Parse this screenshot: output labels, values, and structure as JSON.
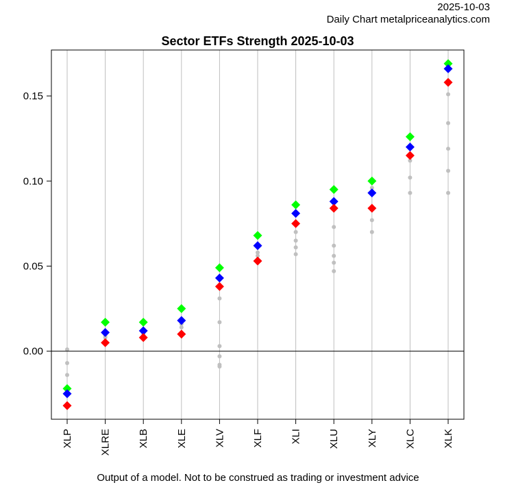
{
  "header": {
    "date": "2025-10-03",
    "source": "Daily Chart metalpriceanalytics.com"
  },
  "footer": {
    "disclaimer": "Output of a model. Not to be construed as trading or investment advice"
  },
  "chart_data": {
    "type": "scatter",
    "title": "Sector ETFs Strength 2025-10-03",
    "xlabel": "",
    "ylabel": "",
    "categories": [
      "XLP",
      "XLRE",
      "XLB",
      "XLE",
      "XLV",
      "XLF",
      "XLI",
      "XLU",
      "XLY",
      "XLC",
      "XLK"
    ],
    "ylim": [
      -0.04,
      0.177
    ],
    "yticks": [
      0.0,
      0.05,
      0.1,
      0.15
    ],
    "ytick_labels": [
      "0.00",
      "0.05",
      "0.10",
      "0.15"
    ],
    "grid": "vertical lines at each category",
    "reference_line": 0,
    "colors": {
      "green": "#00ff00",
      "blue": "#0000ff",
      "red": "#ff0000",
      "history": "#c0c0c0",
      "gridline": "#bebebe"
    },
    "series": [
      {
        "color": "green",
        "values": [
          -0.022,
          0.017,
          0.017,
          0.025,
          0.049,
          0.068,
          0.086,
          0.095,
          0.1,
          0.126,
          0.169
        ]
      },
      {
        "color": "blue",
        "values": [
          -0.025,
          0.011,
          0.012,
          0.018,
          0.043,
          0.062,
          0.081,
          0.088,
          0.093,
          0.12,
          0.166
        ]
      },
      {
        "color": "red",
        "values": [
          -0.032,
          0.005,
          0.008,
          0.01,
          0.038,
          0.053,
          0.075,
          0.084,
          0.084,
          0.115,
          0.158
        ]
      }
    ],
    "history": [
      [
        0.001,
        -0.007,
        -0.014
      ],
      [
        0.008,
        0.009
      ],
      [
        0.01
      ],
      [
        0.014,
        0.016
      ],
      [
        0.031,
        0.017,
        0.003,
        -0.003,
        -0.008,
        -0.009
      ],
      [
        0.058,
        0.056,
        0.052
      ],
      [
        0.07,
        0.065,
        0.061,
        0.057
      ],
      [
        0.073,
        0.062,
        0.056,
        0.052,
        0.047
      ],
      [
        0.096,
        0.077,
        0.07
      ],
      [
        0.112,
        0.102,
        0.093
      ],
      [
        0.151,
        0.134,
        0.119,
        0.106,
        0.093
      ]
    ]
  }
}
